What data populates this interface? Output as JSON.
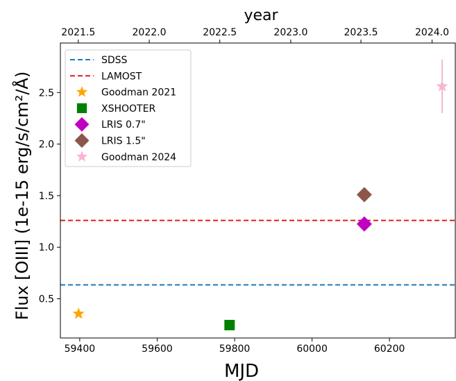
{
  "chart_data": {
    "type": "scatter",
    "xlabel": "MJD",
    "ylabel": "Flux [OIII] (1e-15 erg/s/cm²/Å)",
    "top_xlabel": "year",
    "xlim": [
      59350,
      60370
    ],
    "ylim": [
      0.12,
      2.98
    ],
    "xticks": [
      59400,
      59600,
      59800,
      60000,
      60200
    ],
    "yticks": [
      0.5,
      1.0,
      1.5,
      2.0,
      2.5
    ],
    "xtick_labels": [
      "59400",
      "59600",
      "59800",
      "60000",
      "60200"
    ],
    "ytick_labels": [
      "0.5",
      "1.0",
      "1.5",
      "2.0",
      "2.5"
    ],
    "top_ticks": [
      {
        "mjd": 59396.25,
        "label": "2021.5"
      },
      {
        "mjd": 59579.5,
        "label": "2022.0"
      },
      {
        "mjd": 59761.75,
        "label": "2022.5"
      },
      {
        "mjd": 59945.0,
        "label": "2023.0"
      },
      {
        "mjd": 60126.25,
        "label": "2023.5"
      },
      {
        "mjd": 60310.0,
        "label": "2024.0"
      }
    ],
    "legend_position": "upper-left",
    "grid": false,
    "hlines": [
      {
        "name": "SDSS",
        "y": 0.635,
        "color": "#1f77b4"
      },
      {
        "name": "LAMOST",
        "y": 1.26,
        "color": "#e31a1c"
      }
    ],
    "series": [
      {
        "name": "Goodman 2021",
        "marker": "star",
        "color": "#ffa500",
        "points": [
          {
            "x": 59397,
            "y": 0.355
          }
        ]
      },
      {
        "name": "XSHOOTER",
        "marker": "square",
        "color": "#008000",
        "points": [
          {
            "x": 59787,
            "y": 0.245
          }
        ]
      },
      {
        "name": "LRIS 0.7\"",
        "marker": "diamond",
        "color": "#c000c0",
        "points": [
          {
            "x": 60135,
            "y": 1.225
          }
        ]
      },
      {
        "name": "LRIS 1.5\"",
        "marker": "diamond",
        "color": "#8c564b",
        "points": [
          {
            "x": 60135,
            "y": 1.51
          }
        ]
      },
      {
        "name": "Goodman 2024",
        "marker": "star",
        "color": "#f7b6d2",
        "points": [
          {
            "x": 60336,
            "y": 2.56,
            "yerr": 0.26
          }
        ]
      }
    ]
  }
}
